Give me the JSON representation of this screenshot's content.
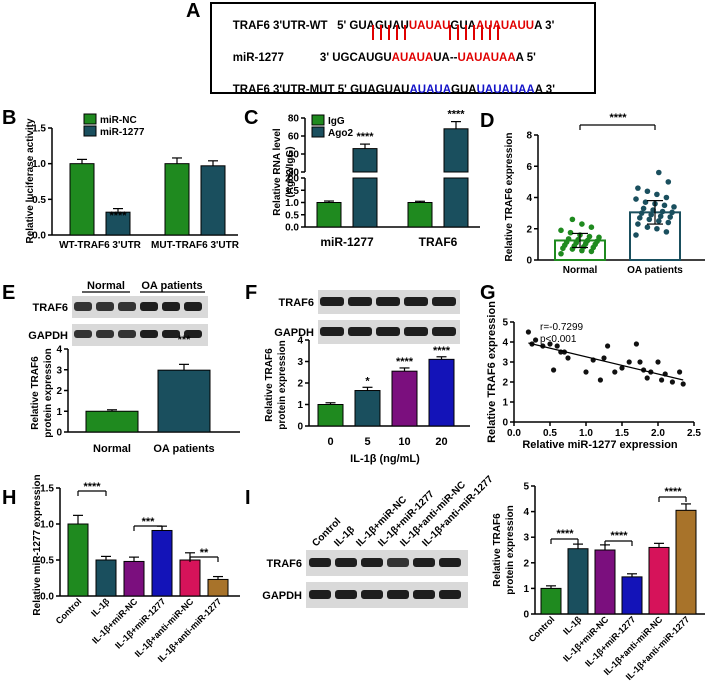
{
  "panels": {
    "A": "A",
    "B": "B",
    "C": "C",
    "D": "D",
    "E": "E",
    "F": "F",
    "G": "G",
    "H": "H",
    "I": "I"
  },
  "panelA": {
    "wt_label": "TRAF6 3'UTR-WT",
    "wt_seq": [
      "5' GUAGUAU",
      "UAUAU",
      "GUA",
      "AUAUAUU",
      "A 3'"
    ],
    "mir_label": "miR-1277",
    "mir_seq": [
      "3' UGCAUGU",
      "AUAUA",
      "UA--",
      "UAUAUAA",
      "A 5'"
    ],
    "mut_label": "TRAF6 3'UTR-MUT",
    "mut_seq": [
      "5' GUAGUAU",
      "AUAUA",
      "GUA",
      "UAUAUAA",
      "A 3'"
    ]
  },
  "colors": {
    "green": "#1f8a1f",
    "teal": "#1a4f5e",
    "purple": "#7b0f7e",
    "blue": "#1313b8",
    "pink": "#d6135a",
    "brown": "#a8732a",
    "red": "#e00000",
    "seqblue": "#1414c8"
  },
  "chart_data": [
    {
      "id": "B",
      "type": "bar",
      "ylabel": "Relative luciferase activity",
      "ylim": [
        0,
        1.5
      ],
      "yticks": [
        "0.0",
        "0.5",
        "1.0",
        "1.5"
      ],
      "categories": [
        "WT-TRAF6 3'UTR",
        "MUT-TRAF6 3'UTR"
      ],
      "series": [
        {
          "name": "miR-NC",
          "values": [
            1.0,
            1.0
          ],
          "errors": [
            0.06,
            0.08
          ]
        },
        {
          "name": "miR-1277",
          "values": [
            0.32,
            0.97
          ],
          "errors": [
            0.05,
            0.07
          ]
        }
      ],
      "annotations": [
        "****"
      ]
    },
    {
      "id": "C",
      "type": "bar",
      "ylabel": "Relative RNA level (Ago2/IgG)",
      "yticks_low": [
        "0.0",
        "0.5",
        "1.0",
        "1.5",
        "2.0"
      ],
      "yticks_high": [
        "20",
        "40",
        "60",
        "80"
      ],
      "categories": [
        "miR-1277",
        "TRAF6"
      ],
      "series": [
        {
          "name": "IgG",
          "values": [
            1.0,
            1.0
          ],
          "errors": [
            0.06,
            0.05
          ]
        },
        {
          "name": "Ago2",
          "values": [
            46,
            68
          ],
          "errors": [
            5,
            8
          ]
        }
      ],
      "annotations": [
        "****",
        "****"
      ]
    },
    {
      "id": "D",
      "type": "scatter",
      "ylabel": "Relative TRAF6 expression",
      "ylim": [
        0,
        8
      ],
      "yticks": [
        "0",
        "2",
        "4",
        "6",
        "8"
      ],
      "categories": [
        "Normal",
        "OA patients"
      ],
      "means": [
        1.25,
        3.05
      ],
      "errors": [
        0.45,
        0.75
      ],
      "points": [
        [
          0.4,
          0.55,
          0.6,
          0.7,
          0.75,
          0.8,
          0.85,
          0.9,
          0.95,
          1.0,
          1.05,
          1.1,
          1.15,
          1.2,
          1.25,
          1.3,
          1.35,
          1.45,
          1.5,
          1.6,
          1.75,
          1.9,
          2.1,
          2.3,
          2.6
        ],
        [
          1.6,
          1.8,
          2.0,
          2.1,
          2.3,
          2.4,
          2.5,
          2.6,
          2.7,
          2.75,
          2.8,
          2.9,
          3.0,
          3.05,
          3.1,
          3.2,
          3.3,
          3.4,
          3.5,
          3.6,
          3.7,
          3.9,
          4.0,
          4.2,
          4.4,
          4.6,
          5.0,
          5.6
        ]
      ],
      "annotations": [
        "****"
      ]
    },
    {
      "id": "E",
      "type": "bar",
      "ylabel": "Relative TRAF6 protein expression",
      "ylim": [
        0,
        4
      ],
      "yticks": [
        "0",
        "1",
        "2",
        "3",
        "4"
      ],
      "categories": [
        "Normal",
        "OA patients"
      ],
      "values": [
        1.0,
        2.98
      ],
      "errors": [
        0.07,
        0.28
      ],
      "annotations": [
        "***"
      ],
      "blot_groups": [
        "Normal",
        "OA patients"
      ],
      "blot_labels": [
        "TRAF6",
        "GAPDH"
      ]
    },
    {
      "id": "F",
      "type": "bar",
      "ylabel": "Relative TRAF6 protein expression",
      "xlabel": "IL-1β (ng/mL)",
      "ylim": [
        0,
        4
      ],
      "yticks": [
        "0",
        "1",
        "2",
        "3",
        "4"
      ],
      "categories": [
        "0",
        "5",
        "10",
        "20"
      ],
      "values": [
        1.0,
        1.65,
        2.55,
        3.1
      ],
      "errors": [
        0.08,
        0.15,
        0.15,
        0.12
      ],
      "annotations": [
        "*",
        "****",
        "****"
      ],
      "blot_labels": [
        "TRAF6",
        "GAPDH"
      ]
    },
    {
      "id": "G",
      "type": "scatter",
      "xlabel": "Relative miR-1277 expression",
      "ylabel": "Relative TRAF6 expression",
      "xlim": [
        0,
        2.5
      ],
      "ylim": [
        0,
        5
      ],
      "xticks": [
        "0.0",
        "0.5",
        "1.0",
        "1.5",
        "2.0",
        "2.5"
      ],
      "yticks": [
        "0",
        "1",
        "2",
        "3",
        "4",
        "5"
      ],
      "stats": [
        "r=-0.7299",
        "p<0.001"
      ],
      "x": [
        0.2,
        0.25,
        0.3,
        0.4,
        0.5,
        0.55,
        0.6,
        0.65,
        0.7,
        0.75,
        1.0,
        1.1,
        1.2,
        1.25,
        1.3,
        1.4,
        1.5,
        1.6,
        1.7,
        1.75,
        1.8,
        1.85,
        1.9,
        2.0,
        2.05,
        2.1,
        2.2,
        2.3,
        2.35
      ],
      "y": [
        4.5,
        3.9,
        4.1,
        3.8,
        3.9,
        2.6,
        3.8,
        3.5,
        3.5,
        3.2,
        2.5,
        3.1,
        2.1,
        3.2,
        3.8,
        2.5,
        2.7,
        3.0,
        3.9,
        3.0,
        2.6,
        2.2,
        2.5,
        3.0,
        2.1,
        2.4,
        2.0,
        2.5,
        1.9
      ],
      "fit": {
        "x": [
          0.2,
          2.35
        ],
        "y": [
          3.95,
          2.1
        ]
      }
    },
    {
      "id": "H",
      "type": "bar",
      "ylabel": "Relative miR-1277 expression",
      "ylim": [
        0,
        1.5
      ],
      "yticks": [
        "0.0",
        "0.5",
        "1.0",
        "1.5"
      ],
      "categories": [
        "Control",
        "IL-1β",
        "IL-1β+miR-NC",
        "IL-1β+miR-1277",
        "IL-1β+anti-miR-NC",
        "IL-1β+anti-miR-1277"
      ],
      "values": [
        1.0,
        0.5,
        0.48,
        0.91,
        0.5,
        0.23
      ],
      "errors": [
        0.12,
        0.05,
        0.06,
        0.06,
        0.1,
        0.04
      ],
      "annotations": [
        "****",
        "***",
        "**"
      ]
    },
    {
      "id": "I",
      "type": "bar",
      "ylabel": "Relative TRAF6 protein expression",
      "ylim": [
        0,
        5
      ],
      "yticks": [
        "0",
        "1",
        "2",
        "3",
        "4",
        "5"
      ],
      "categories": [
        "Control",
        "IL-1β",
        "IL-1β+miR-NC",
        "IL-1β+miR-1277",
        "IL-1β+anti-miR-NC",
        "IL-1β+anti-miR-1277"
      ],
      "values": [
        1.0,
        2.55,
        2.5,
        1.45,
        2.6,
        4.05
      ],
      "errors": [
        0.1,
        0.18,
        0.2,
        0.12,
        0.16,
        0.25
      ],
      "annotations": [
        "****",
        "****",
        "****"
      ],
      "blot_labels": [
        "TRAF6",
        "GAPDH"
      ]
    }
  ]
}
